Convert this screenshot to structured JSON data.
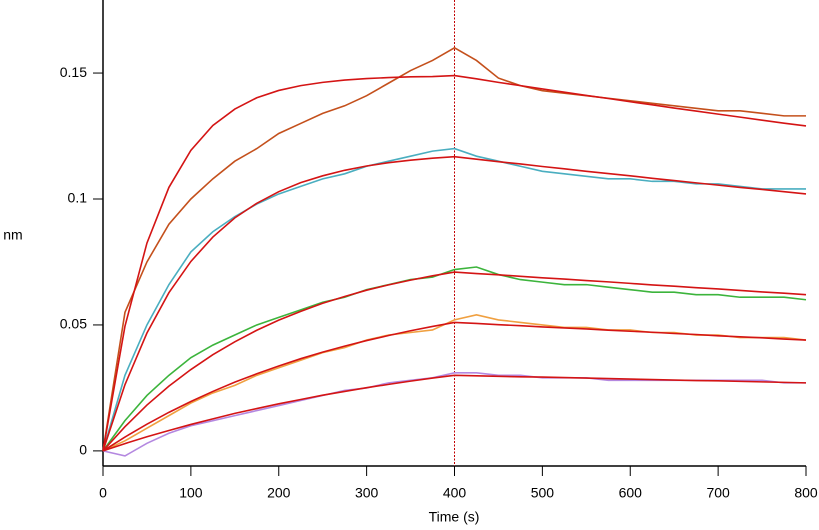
{
  "chart_data": {
    "type": "line",
    "x_label": "Time (s)",
    "y_label": "nm",
    "x": [
      0,
      25,
      50,
      75,
      100,
      125,
      150,
      175,
      200,
      225,
      250,
      275,
      300,
      325,
      350,
      375,
      400,
      425,
      450,
      475,
      500,
      525,
      550,
      575,
      600,
      625,
      650,
      675,
      700,
      725,
      750,
      775,
      800
    ],
    "series": [
      {
        "color": "#c4501c",
        "values": [
          0,
          0.055,
          0.075,
          0.09,
          0.1,
          0.108,
          0.115,
          0.12,
          0.126,
          0.13,
          0.134,
          0.137,
          0.141,
          0.146,
          0.151,
          0.155,
          0.16,
          0.155,
          0.148,
          0.145,
          0.143,
          0.142,
          0.141,
          0.14,
          0.139,
          0.138,
          0.137,
          0.136,
          0.135,
          0.135,
          0.134,
          0.133,
          0.133
        ]
      },
      {
        "color": "#4aaec0",
        "values": [
          0,
          0.03,
          0.05,
          0.066,
          0.079,
          0.087,
          0.093,
          0.098,
          0.102,
          0.105,
          0.108,
          0.11,
          0.113,
          0.115,
          0.117,
          0.119,
          0.12,
          0.117,
          0.115,
          0.113,
          0.111,
          0.11,
          0.109,
          0.108,
          0.108,
          0.107,
          0.107,
          0.106,
          0.106,
          0.105,
          0.104,
          0.104,
          0.104
        ]
      },
      {
        "color": "#3cb43c",
        "values": [
          0,
          0.012,
          0.022,
          0.03,
          0.037,
          0.042,
          0.046,
          0.05,
          0.053,
          0.056,
          0.059,
          0.061,
          0.064,
          0.066,
          0.068,
          0.069,
          0.072,
          0.073,
          0.07,
          0.068,
          0.067,
          0.066,
          0.066,
          0.065,
          0.064,
          0.063,
          0.063,
          0.062,
          0.062,
          0.061,
          0.061,
          0.061,
          0.06
        ]
      },
      {
        "color": "#f0a040",
        "values": [
          0,
          0.004,
          0.009,
          0.014,
          0.019,
          0.023,
          0.026,
          0.03,
          0.033,
          0.036,
          0.039,
          0.041,
          0.044,
          0.046,
          0.047,
          0.048,
          0.052,
          0.054,
          0.052,
          0.051,
          0.05,
          0.049,
          0.049,
          0.048,
          0.048,
          0.047,
          0.047,
          0.046,
          0.046,
          0.045,
          0.045,
          0.045,
          0.044
        ]
      },
      {
        "color": "#b488e0",
        "values": [
          0,
          -0.002,
          0.003,
          0.007,
          0.01,
          0.012,
          0.014,
          0.016,
          0.018,
          0.02,
          0.022,
          0.024,
          0.025,
          0.027,
          0.028,
          0.029,
          0.031,
          0.031,
          0.03,
          0.03,
          0.029,
          0.029,
          0.029,
          0.028,
          0.028,
          0.028,
          0.028,
          0.028,
          0.028,
          0.028,
          0.028,
          0.027,
          0.027
        ]
      },
      {
        "color": "#d41414",
        "values": [
          0,
          0.0495,
          0.0825,
          0.1046,
          0.1193,
          0.1292,
          0.1357,
          0.1402,
          0.1431,
          0.145,
          0.1463,
          0.1472,
          0.1478,
          0.1482,
          0.1485,
          0.1486,
          0.149,
          0.1477,
          0.1463,
          0.145,
          0.1437,
          0.1424,
          0.1411,
          0.1399,
          0.1386,
          0.1374,
          0.1361,
          0.1349,
          0.1337,
          0.1325,
          0.1313,
          0.1301,
          0.129
        ]
      },
      {
        "color": "#d41414",
        "values": [
          0,
          0.0263,
          0.0468,
          0.0628,
          0.0752,
          0.0849,
          0.0925,
          0.0983,
          0.1029,
          0.1065,
          0.1092,
          0.1114,
          0.1131,
          0.1144,
          0.1154,
          0.1162,
          0.1168,
          0.1158,
          0.1148,
          0.1139,
          0.1129,
          0.112,
          0.111,
          0.1101,
          0.1092,
          0.1082,
          0.1073,
          0.1064,
          0.1055,
          0.1046,
          0.1038,
          0.1029,
          0.102
        ]
      },
      {
        "color": "#d41414",
        "values": [
          0,
          0.0096,
          0.0182,
          0.0257,
          0.0323,
          0.0382,
          0.0433,
          0.0479,
          0.0519,
          0.0554,
          0.0586,
          0.0613,
          0.0638,
          0.0659,
          0.0678,
          0.0695,
          0.071,
          0.0704,
          0.0699,
          0.0693,
          0.0687,
          0.0682,
          0.0676,
          0.0671,
          0.0665,
          0.0659,
          0.0654,
          0.0648,
          0.0643,
          0.0637,
          0.0631,
          0.0626,
          0.062
        ]
      },
      {
        "color": "#d41414",
        "values": [
          0,
          0.0055,
          0.0106,
          0.0153,
          0.0196,
          0.0236,
          0.0273,
          0.0306,
          0.0337,
          0.0366,
          0.0392,
          0.0416,
          0.0438,
          0.0458,
          0.0477,
          0.0494,
          0.051,
          0.0506,
          0.0501,
          0.0497,
          0.0492,
          0.0488,
          0.0484,
          0.0479,
          0.0475,
          0.0471,
          0.0466,
          0.0462,
          0.0457,
          0.0453,
          0.0449,
          0.0444,
          0.044
        ]
      },
      {
        "color": "#d41414",
        "values": [
          0,
          0.0029,
          0.0056,
          0.0081,
          0.0105,
          0.0127,
          0.0149,
          0.0168,
          0.0187,
          0.0204,
          0.0221,
          0.0236,
          0.0251,
          0.0264,
          0.0277,
          0.0289,
          0.03,
          0.0298,
          0.0296,
          0.0294,
          0.0293,
          0.0291,
          0.0289,
          0.0287,
          0.0285,
          0.0283,
          0.0281,
          0.0279,
          0.0278,
          0.0276,
          0.0274,
          0.0272,
          0.027
        ]
      }
    ],
    "vline": {
      "x": 400,
      "color": "#c00000"
    },
    "xlim": [
      0,
      800
    ],
    "xticks": [
      0,
      100,
      200,
      300,
      400,
      500,
      600,
      700,
      800
    ],
    "ylim": [
      -0.006,
      0.179
    ],
    "yticks": [
      0,
      0.05,
      0.1,
      0.15
    ]
  }
}
